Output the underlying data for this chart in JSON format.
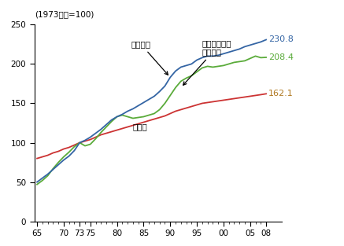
{
  "title": "(1973年度=100)",
  "ylim": [
    0,
    250
  ],
  "yticks": [
    0,
    50,
    100,
    150,
    200,
    250
  ],
  "kojin": [
    50,
    55,
    60,
    66,
    72,
    78,
    83,
    90,
    100,
    103,
    107,
    112,
    117,
    123,
    129,
    133,
    136,
    140,
    143,
    147,
    151,
    155,
    159,
    165,
    172,
    183,
    191,
    196,
    198,
    200,
    205,
    208,
    210,
    210,
    211,
    213,
    215,
    217,
    219,
    222,
    224,
    226,
    228,
    230.8
  ],
  "katei": [
    47,
    52,
    58,
    67,
    75,
    82,
    88,
    95,
    100,
    96,
    98,
    105,
    113,
    120,
    127,
    133,
    135,
    133,
    131,
    132,
    133,
    135,
    137,
    142,
    150,
    160,
    170,
    178,
    182,
    185,
    190,
    195,
    197,
    196,
    197,
    198,
    200,
    202,
    203,
    204,
    207,
    210,
    208,
    208.4
  ],
  "setai": [
    80,
    82,
    84,
    87,
    89,
    92,
    94,
    97,
    100,
    102,
    104,
    107,
    110,
    112,
    114,
    116,
    118,
    120,
    122,
    124,
    126,
    128,
    130,
    132,
    134,
    137,
    140,
    142,
    144,
    146,
    148,
    150,
    151,
    152,
    153,
    154,
    155,
    156,
    157,
    158,
    159,
    160,
    161,
    162.1
  ],
  "kojin_color": "#3465a4",
  "katei_color": "#5aab3a",
  "setai_color": "#cc3333",
  "end_label_setai_color": "#b07820",
  "end_label_kojin": "230.8",
  "end_label_katei": "208.4",
  "end_label_setai": "162.1",
  "ann_kojin_text": "個人消費",
  "ann_katei_text": "家庭用エネル\nギー消費",
  "ann_setai_text": "世帯数",
  "background": "#ffffff",
  "linewidth": 1.3
}
